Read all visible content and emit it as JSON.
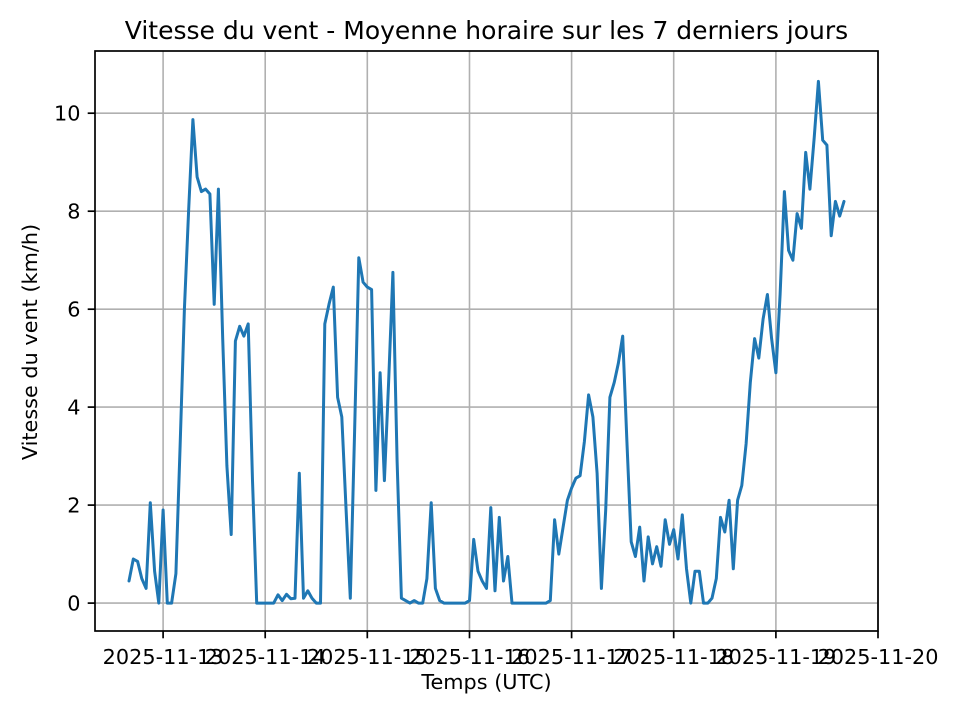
{
  "chart_data": {
    "type": "line",
    "title": "Vitesse du vent - Moyenne horaire sur les 7 derniers jours",
    "xlabel": "Temps (UTC)",
    "ylabel": "Vitesse du vent (km/h)",
    "legend": null,
    "grid": true,
    "line_color": "#1f77b4",
    "grid_color": "#b0b0b0",
    "axis_color": "#000000",
    "x_tick_labels": [
      "2025-11-13",
      "2025-11-14",
      "2025-11-15",
      "2025-11-16",
      "2025-11-17",
      "2025-11-18",
      "2025-11-19",
      "2025-11-20"
    ],
    "y_ticks": [
      0,
      2,
      4,
      6,
      8,
      10
    ],
    "y_tick_labels": [
      "0",
      "2",
      "4",
      "6",
      "8",
      "10"
    ],
    "ylim": [
      -0.57,
      11.27
    ],
    "x_window_hours_rel_first_point": [
      -8,
      176
    ],
    "x_tick_hours_rel_first_point": [
      8,
      32,
      56,
      80,
      104,
      128,
      152,
      176
    ],
    "series_start": "2025-11-12 16:00",
    "step_hours": 1,
    "values": [
      0.45,
      0.9,
      0.85,
      0.5,
      0.3,
      2.05,
      0.65,
      0.0,
      1.9,
      0.0,
      0.0,
      0.6,
      3.2,
      6.0,
      8.0,
      9.87,
      8.7,
      8.4,
      8.45,
      8.35,
      6.1,
      8.45,
      5.4,
      2.8,
      1.4,
      5.35,
      5.65,
      5.45,
      5.7,
      2.5,
      0.0,
      0.0,
      0.0,
      0.0,
      0.0,
      0.17,
      0.05,
      0.18,
      0.09,
      0.1,
      2.65,
      0.1,
      0.25,
      0.1,
      0.0,
      0.0,
      5.7,
      6.1,
      6.45,
      4.2,
      3.8,
      1.9,
      0.1,
      3.5,
      7.05,
      6.55,
      6.45,
      6.4,
      2.3,
      4.7,
      2.5,
      4.5,
      6.75,
      2.9,
      0.1,
      0.05,
      0.0,
      0.05,
      0.0,
      0.0,
      0.5,
      2.05,
      0.3,
      0.05,
      0.0,
      0.0,
      0.0,
      0.0,
      0.0,
      0.0,
      0.05,
      1.3,
      0.65,
      0.45,
      0.3,
      1.95,
      0.25,
      1.75,
      0.45,
      0.95,
      0.0,
      0.0,
      0.0,
      0.0,
      0.0,
      0.0,
      0.0,
      0.0,
      0.0,
      0.05,
      1.7,
      1.0,
      1.55,
      2.1,
      2.35,
      2.55,
      2.6,
      3.3,
      4.25,
      3.8,
      2.65,
      0.3,
      1.9,
      4.2,
      4.5,
      4.9,
      5.45,
      3.3,
      1.25,
      0.95,
      1.55,
      0.45,
      1.35,
      0.8,
      1.15,
      0.75,
      1.7,
      1.2,
      1.5,
      0.9,
      1.8,
      0.7,
      0.0,
      0.65,
      0.65,
      0.0,
      0.0,
      0.1,
      0.5,
      1.75,
      1.45,
      2.1,
      0.7,
      2.1,
      2.4,
      3.25,
      4.5,
      5.4,
      5.0,
      5.8,
      6.3,
      5.4,
      4.7,
      6.3,
      8.4,
      7.2,
      7.0,
      7.95,
      7.65,
      9.2,
      8.45,
      9.5,
      10.65,
      9.45,
      9.35,
      7.5,
      8.2,
      7.9,
      8.2
    ]
  }
}
